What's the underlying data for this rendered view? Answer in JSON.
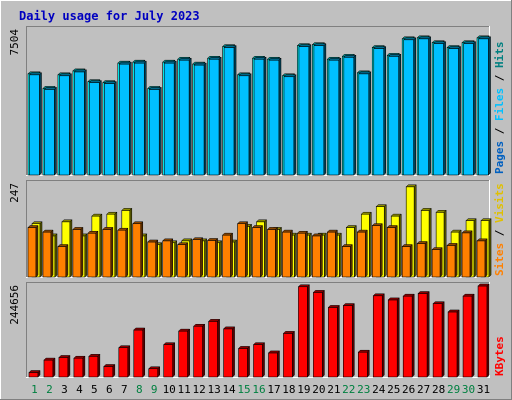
{
  "chart_data": {
    "type": "bar",
    "title": "Daily usage for July 2023",
    "x_categories": [
      "1",
      "2",
      "3",
      "4",
      "5",
      "6",
      "7",
      "8",
      "9",
      "10",
      "11",
      "12",
      "13",
      "14",
      "15",
      "16",
      "17",
      "18",
      "19",
      "20",
      "21",
      "22",
      "23",
      "24",
      "25",
      "26",
      "27",
      "28",
      "29",
      "30",
      "31"
    ],
    "weekend_days": [
      "1",
      "2",
      "8",
      "9",
      "15",
      "16",
      "22",
      "23",
      "29",
      "30"
    ],
    "panels": [
      {
        "name": "pages-files-hits",
        "ymax_label": "7504",
        "ylim": [
          0,
          7504
        ],
        "legend": [
          "Pages",
          "Files",
          "Hits"
        ],
        "series": [
          {
            "name": "Hits",
            "color": "#00ffff",
            "values": [
              5200,
              4450,
              5150,
              5350,
              4800,
              4750,
              5750,
              5800,
              4450,
              5800,
              5950,
              5700,
              6000,
              6600,
              5150,
              6000,
              5950,
              5100,
              6650,
              6700,
              5950,
              6100,
              5250,
              6550,
              6150,
              7000,
              7050,
              6800,
              6550,
              6800,
              7050
            ]
          },
          {
            "name": "Files",
            "color": "#00c0ff",
            "values": [
              5150,
              4400,
              5100,
              5300,
              4750,
              4700,
              5700,
              5750,
              4400,
              5750,
              5900,
              5650,
              5950,
              6550,
              5100,
              5950,
              5900,
              5050,
              6600,
              6650,
              5900,
              6050,
              5200,
              6500,
              6100,
              6950,
              7000,
              6750,
              6500,
              6750,
              7000
            ]
          },
          {
            "name": "Pages",
            "color": "#0060c0",
            "values": [
              0,
              0,
              0,
              0,
              0,
              0,
              0,
              0,
              0,
              0,
              0,
              0,
              0,
              0,
              0,
              0,
              0,
              0,
              0,
              0,
              0,
              0,
              0,
              0,
              0,
              0,
              0,
              0,
              0,
              0,
              0
            ]
          }
        ]
      },
      {
        "name": "visits-sites",
        "ymax_label": "247",
        "ylim": [
          0,
          247
        ],
        "legend": [
          "Sites",
          "Visits"
        ],
        "series": [
          {
            "name": "Visits",
            "color": "#ffff00",
            "values": [
              140,
              108,
              145,
              108,
              160,
              165,
              175,
              108,
              85,
              90,
              95,
              95,
              90,
              92,
              133,
              145,
              125,
              110,
              110,
              110,
              110,
              130,
              165,
              185,
              160,
              237,
              175,
              170,
              118,
              148,
              148
            ]
          },
          {
            "name": "Sites",
            "color": "#ff8000",
            "values": [
              130,
              118,
              80,
              125,
              115,
              125,
              123,
              140,
              92,
              95,
              85,
              98,
              96,
              110,
              140,
              130,
              125,
              118,
              115,
              108,
              118,
              80,
              118,
              135,
              130,
              80,
              88,
              72,
              83,
              116,
              95
            ]
          }
        ]
      },
      {
        "name": "kbytes",
        "ymax_label": "244656",
        "ylim": [
          0,
          244656
        ],
        "legend": [
          "KBytes"
        ],
        "series": [
          {
            "name": "KBytes",
            "color": "#ff0000",
            "values": [
              12000,
              45000,
              52000,
              50000,
              55000,
              28000,
              78000,
              125000,
              22000,
              86000,
              122000,
              135000,
              148000,
              128000,
              76000,
              86000,
              64000,
              116000,
              240000,
              225000,
              185000,
              190000,
              66000,
              216000,
              205000,
              215000,
              222000,
              195000,
              173000,
              215000,
              242000
            ]
          }
        ]
      }
    ]
  }
}
